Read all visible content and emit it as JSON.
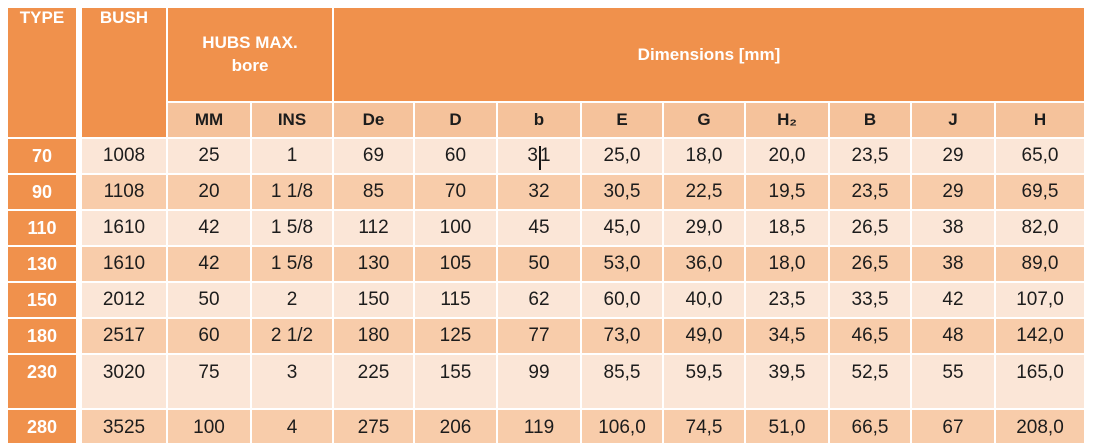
{
  "colors": {
    "orange": "#F0914C",
    "subheader_bg": "#F5C29B",
    "row_light": "#FBE6D7",
    "row_dark": "#F8CCAA",
    "text": "#1C1C1C",
    "header_text": "#FFFFFF"
  },
  "table": {
    "header": {
      "type": "TYPE",
      "bush": "BUSH",
      "hubs_line1": "HUBS MAX.",
      "hubs_line2": "bore",
      "dimensions": "Dimensions [mm]",
      "subcolumns": [
        "MM",
        "INS",
        "De",
        "D",
        "b",
        "E",
        "G",
        "H₂",
        "B",
        "J",
        "H"
      ]
    },
    "rows": [
      {
        "type": "70",
        "cells": [
          "1008",
          "25",
          "1",
          "69",
          "60",
          "31",
          "25,0",
          "18,0",
          "20,0",
          "23,5",
          "29",
          "65,0"
        ]
      },
      {
        "type": "90",
        "cells": [
          "1108",
          "20",
          "1 1/8",
          "85",
          "70",
          "32",
          "30,5",
          "22,5",
          "19,5",
          "23,5",
          "29",
          "69,5"
        ]
      },
      {
        "type": "110",
        "cells": [
          "1610",
          "42",
          "1 5/8",
          "112",
          "100",
          "45",
          "45,0",
          "29,0",
          "18,5",
          "26,5",
          "38",
          "82,0"
        ]
      },
      {
        "type": "130",
        "cells": [
          "1610",
          "42",
          "1 5/8",
          "130",
          "105",
          "50",
          "53,0",
          "36,0",
          "18,0",
          "26,5",
          "38",
          "89,0"
        ]
      },
      {
        "type": "150",
        "cells": [
          "2012",
          "50",
          "2",
          "150",
          "115",
          "62",
          "60,0",
          "40,0",
          "23,5",
          "33,5",
          "42",
          "107,0"
        ]
      },
      {
        "type": "180",
        "cells": [
          "2517",
          "60",
          "2 1/2",
          "180",
          "125",
          "77",
          "73,0",
          "49,0",
          "34,5",
          "46,5",
          "48",
          "142,0"
        ]
      },
      {
        "type": "230",
        "cells": [
          "3020",
          "75",
          "3",
          "225",
          "155",
          "99",
          "85,5",
          "59,5",
          "39,5",
          "52,5",
          "55",
          "165,0"
        ]
      },
      {
        "type": "280",
        "cells": [
          "3525",
          "100",
          "4",
          "275",
          "206",
          "119",
          "106,0",
          "74,5",
          "51,0",
          "66,5",
          "67",
          "208,0"
        ]
      }
    ],
    "caret": {
      "row_index": 0,
      "cell_index": 5,
      "after_chars": 1
    }
  }
}
